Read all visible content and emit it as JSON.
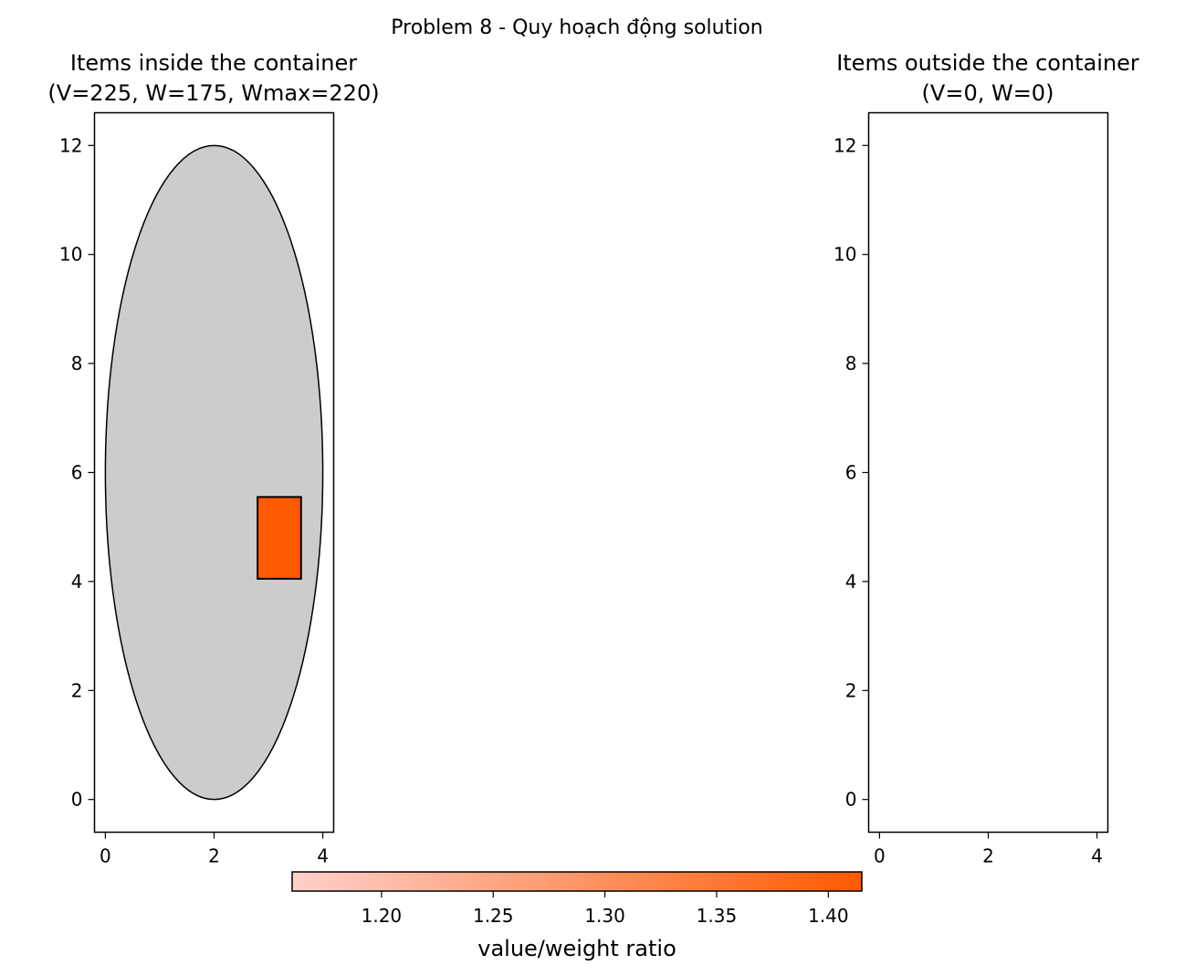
{
  "figure": {
    "suptitle": "Problem 8 - Quy hoạch động solution"
  },
  "chart_data": [
    {
      "type": "scatter",
      "title_line1": "Items inside the container",
      "title_line2": "(V=225, W=175, Wmax=220)",
      "xlim": [
        -0.2,
        4.2
      ],
      "ylim": [
        -0.6,
        12.6
      ],
      "xticks": [
        0,
        2,
        4
      ],
      "yticks": [
        0,
        2,
        4,
        6,
        8,
        10,
        12
      ],
      "grid": false,
      "container": {
        "shape": "ellipse",
        "center": [
          2,
          6
        ],
        "width": 4,
        "height": 12,
        "fill": "#cccccc",
        "edge": "#000000"
      },
      "items": [
        {
          "x": 2.8,
          "y": 4.05,
          "width": 0.8,
          "height": 1.5,
          "ratio": 1.4142,
          "fill": "#ff5a00"
        }
      ]
    },
    {
      "type": "scatter",
      "title_line1": "Items outside the container",
      "title_line2": "(V=0, W=0)",
      "xlim": [
        -0.2,
        4.2
      ],
      "ylim": [
        -0.6,
        12.6
      ],
      "xticks": [
        0,
        2,
        4
      ],
      "yticks": [
        0,
        2,
        4,
        6,
        8,
        10,
        12
      ],
      "grid": false,
      "items": []
    }
  ],
  "colorbar": {
    "label": "value/weight ratio",
    "vmin": 1.16,
    "vmax": 1.415,
    "ticks": [
      1.2,
      1.25,
      1.3,
      1.35,
      1.4
    ],
    "tick_labels": [
      "1.20",
      "1.25",
      "1.30",
      "1.35",
      "1.40"
    ],
    "color_low": "#ffd0cc",
    "color_high": "#ff5a00"
  }
}
